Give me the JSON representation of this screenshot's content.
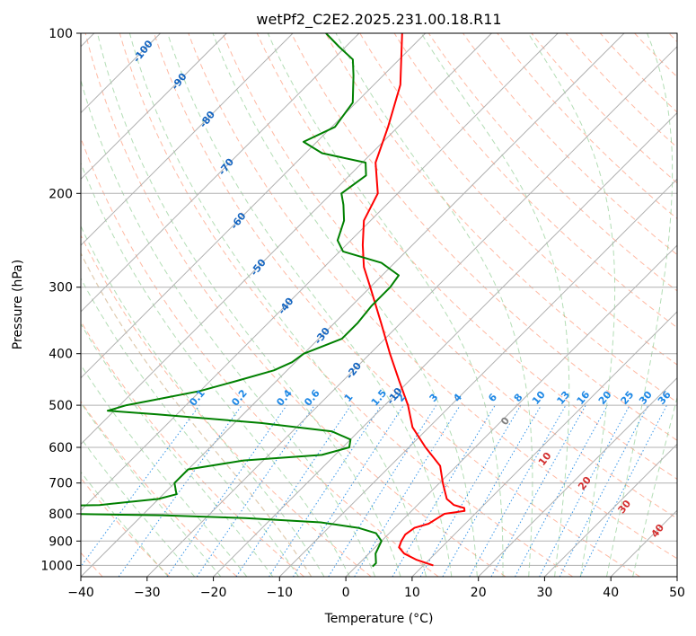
{
  "chart_data": {
    "type": "line",
    "title": "wetPf2_C2E2.2025.231.00.18.R11",
    "xlabel": "Temperature (°C)",
    "ylabel": "Pressure (hPa)",
    "xlim": [
      -40,
      50
    ],
    "ylim": [
      1050,
      100
    ],
    "x_ticks": [
      -40,
      -30,
      -20,
      -10,
      0,
      10,
      20,
      30,
      40,
      50
    ],
    "x_tick_labels": [
      "−40",
      "−30",
      "−20",
      "−10",
      "0",
      "10",
      "20",
      "30",
      "40",
      "50"
    ],
    "y_ticks": [
      100,
      200,
      300,
      400,
      500,
      600,
      700,
      800,
      900,
      1000
    ],
    "y_tick_labels": [
      "100",
      "200",
      "300",
      "400",
      "500",
      "600",
      "700",
      "800",
      "900",
      "1000"
    ],
    "y_scale": "log",
    "grid": true,
    "skew_x": true,
    "series": [
      {
        "color": "#ff0000",
        "points": [
          [
            1000,
            11.5
          ],
          [
            975,
            8.0
          ],
          [
            950,
            5.3
          ],
          [
            925,
            3.6
          ],
          [
            900,
            3.0
          ],
          [
            875,
            2.6
          ],
          [
            850,
            3.0
          ],
          [
            835,
            4.5
          ],
          [
            815,
            5.0
          ],
          [
            800,
            5.4
          ],
          [
            790,
            8.0
          ],
          [
            780,
            7.5
          ],
          [
            770,
            5.5
          ],
          [
            750,
            3.5
          ],
          [
            700,
            0.5
          ],
          [
            650,
            -2.5
          ],
          [
            600,
            -7.5
          ],
          [
            550,
            -12.5
          ],
          [
            500,
            -16.5
          ],
          [
            450,
            -21.5
          ],
          [
            400,
            -27.0
          ],
          [
            350,
            -33.0
          ],
          [
            300,
            -40.0
          ],
          [
            275,
            -44.0
          ],
          [
            250,
            -47.5
          ],
          [
            225,
            -51.0
          ],
          [
            200,
            -53.0
          ],
          [
            175,
            -58.0
          ],
          [
            150,
            -61.5
          ],
          [
            125,
            -66.0
          ],
          [
            100,
            -73.5
          ]
        ]
      },
      {
        "color": "#008000",
        "points": [
          [
            1005,
            2.5
          ],
          [
            990,
            2.5
          ],
          [
            950,
            1.0
          ],
          [
            900,
            0.0
          ],
          [
            870,
            -2.0
          ],
          [
            850,
            -5.5
          ],
          [
            830,
            -12.0
          ],
          [
            815,
            -24.0
          ],
          [
            805,
            -37.0
          ],
          [
            800,
            -52.0
          ],
          [
            795,
            -60.0
          ],
          [
            790,
            -75.0
          ],
          [
            785,
            -73.0
          ],
          [
            780,
            -72.0
          ],
          [
            775,
            -60.0
          ],
          [
            770,
            -48.0
          ],
          [
            750,
            -40.0
          ],
          [
            735,
            -38.0
          ],
          [
            700,
            -40.0
          ],
          [
            660,
            -40.0
          ],
          [
            635,
            -33.0
          ],
          [
            620,
            -22.0
          ],
          [
            600,
            -19.0
          ],
          [
            580,
            -20.0
          ],
          [
            560,
            -24.0
          ],
          [
            540,
            -36.0
          ],
          [
            520,
            -53.0
          ],
          [
            512,
            -61.0
          ],
          [
            506,
            -60.0
          ],
          [
            500,
            -59.0
          ],
          [
            490,
            -56.0
          ],
          [
            470,
            -50.0
          ],
          [
            450,
            -46.0
          ],
          [
            430,
            -42.0
          ],
          [
            415,
            -40.5
          ],
          [
            400,
            -40.0
          ],
          [
            375,
            -36.5
          ],
          [
            350,
            -36.5
          ],
          [
            325,
            -37.0
          ],
          [
            300,
            -37.0
          ],
          [
            285,
            -37.5
          ],
          [
            270,
            -42.0
          ],
          [
            257,
            -49.5
          ],
          [
            245,
            -52.0
          ],
          [
            225,
            -54.0
          ],
          [
            210,
            -56.5
          ],
          [
            200,
            -58.5
          ],
          [
            185,
            -57.5
          ],
          [
            175,
            -59.5
          ],
          [
            168,
            -67.5
          ],
          [
            160,
            -72.0
          ],
          [
            150,
            -69.5
          ],
          [
            135,
            -70.5
          ],
          [
            120,
            -74.5
          ],
          [
            112,
            -77.0
          ],
          [
            106,
            -81.0
          ],
          [
            100,
            -85.0
          ]
        ]
      }
    ],
    "mixing_ratio_labels": [
      "0.1",
      "0.2",
      "0.4",
      "0.6",
      "1",
      "1.5",
      "2",
      "3",
      "4",
      "6",
      "8",
      "10",
      "13",
      "16",
      "20",
      "25",
      "30",
      "36"
    ],
    "dry_adiabat_labels": [
      "-100",
      "-90",
      "-80",
      "-70",
      "-60",
      "-50",
      "-40",
      "-30",
      "-20",
      "-10"
    ],
    "moist_adiabat_labels": [
      "0",
      "10",
      "20",
      "30",
      "40"
    ]
  },
  "colors": {
    "temperature": "#ff0000",
    "dewpoint": "#008000",
    "grid": "#b0b0b0",
    "dry_adiabat": "#ff8a65",
    "moist_adiabat": "#81c784",
    "mixing_ratio": "#1e88e5",
    "dry_label": "#1565c0",
    "moist_label_warm": "#d32f2f",
    "moist_label_zero": "#808080",
    "mixing_label": "#1e88e5",
    "tan_curve": "#d2b48c"
  }
}
